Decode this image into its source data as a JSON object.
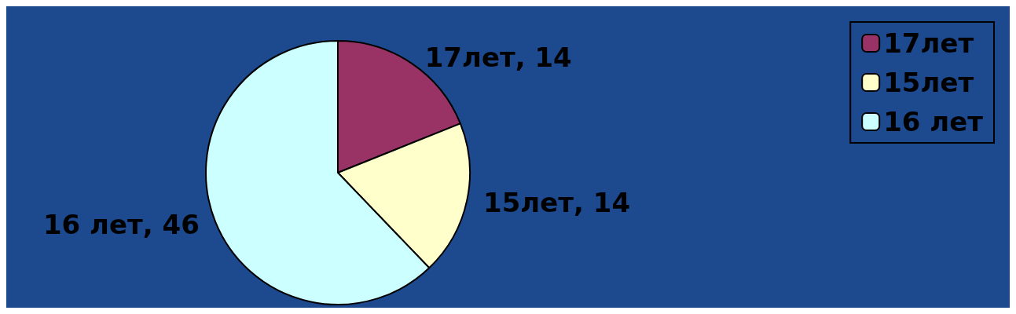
{
  "chart_data": {
    "type": "pie",
    "categories": [
      "17лет",
      "15лет",
      "16 лет"
    ],
    "values": [
      14,
      14,
      46
    ],
    "value_labels": [
      ", 14",
      ", 14",
      ", 46"
    ],
    "colors": [
      "#993366",
      "#ffffcc",
      "#ccffff"
    ],
    "legend": "top right"
  }
}
